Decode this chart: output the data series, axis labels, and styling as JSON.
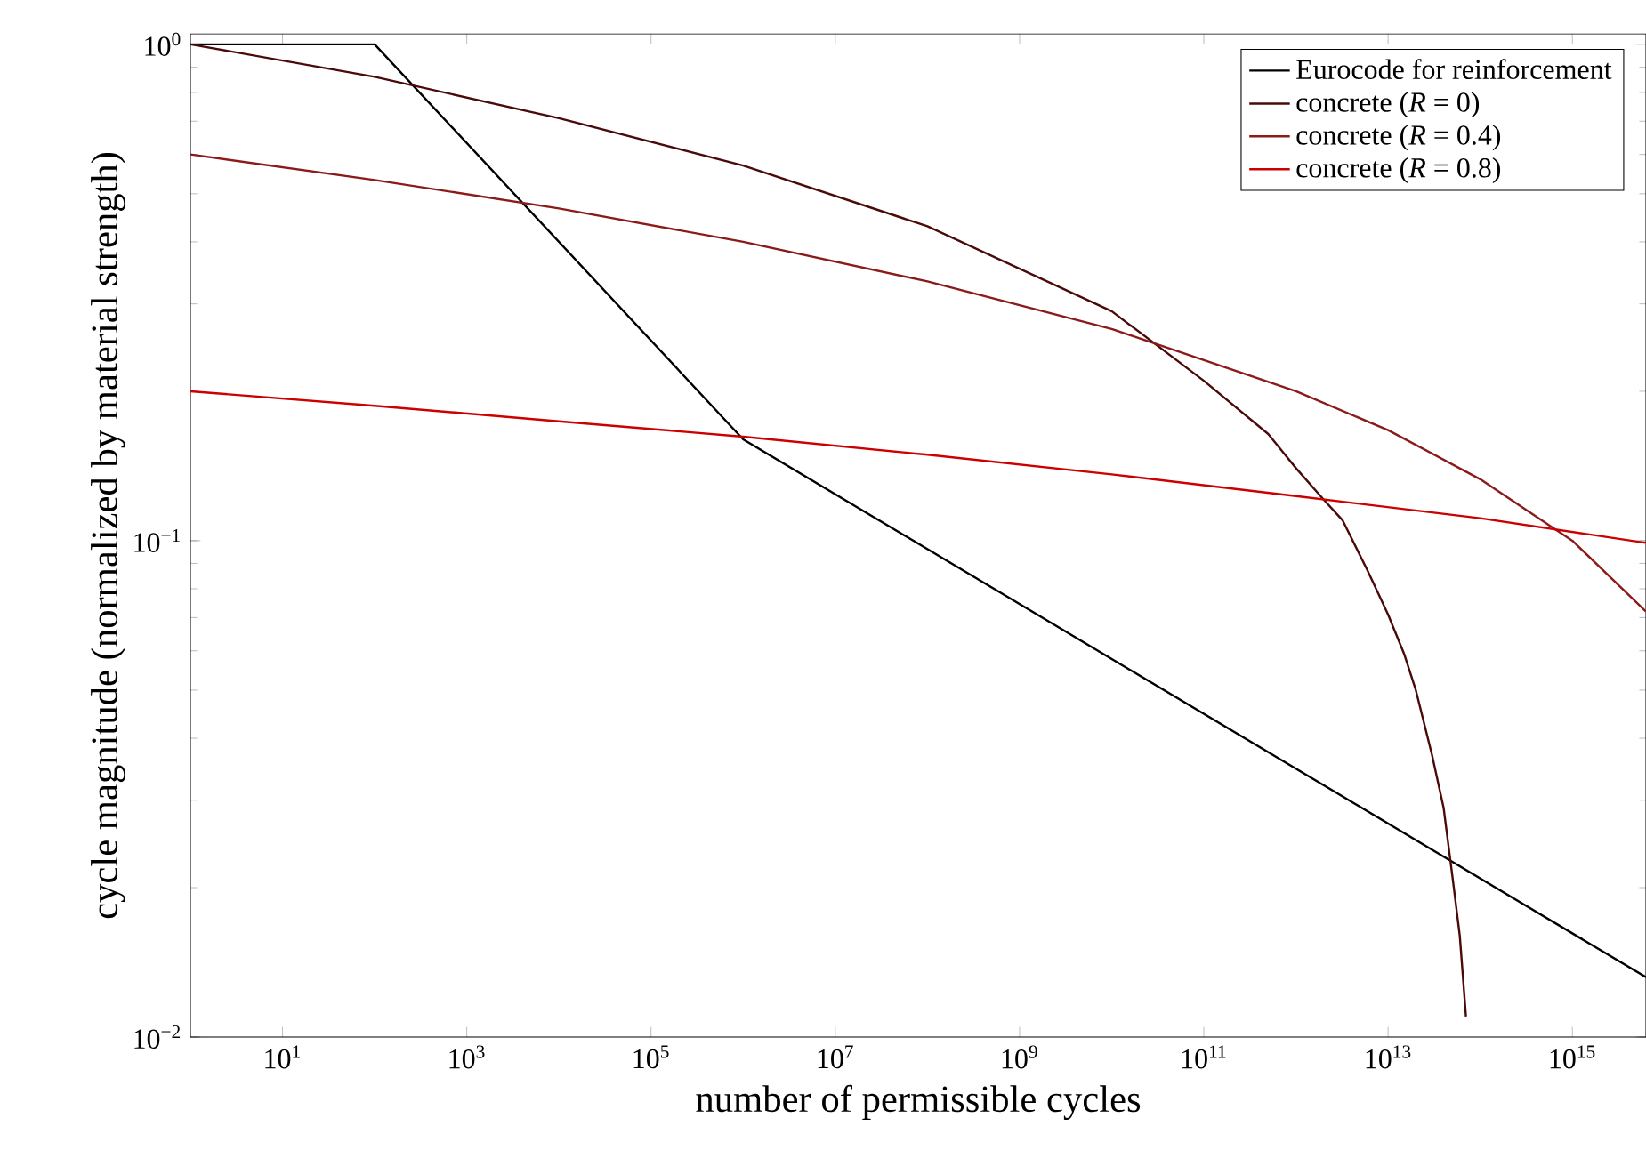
{
  "chart_data": {
    "type": "line",
    "xlabel": "number of permissible cycles",
    "ylabel": "cycle magnitude (normalized by material strength)",
    "log": "xy",
    "grid": false,
    "legend": "top right",
    "marker": "none",
    "line_style": "solid",
    "xlim": [
      1,
      6300000000000000.0
    ],
    "ylim": [
      0.01,
      1.05
    ],
    "xticks": [
      {
        "value": 10,
        "label": "10$^{1}$"
      },
      {
        "value": 1000,
        "label": "10$^{3}$"
      },
      {
        "value": 100000,
        "label": "10$^{5}$"
      },
      {
        "value": 10000000,
        "label": "10$^{7}$"
      },
      {
        "value": 1000000000,
        "label": "10$^{9}$"
      },
      {
        "value": 100000000000,
        "label": "10$^{11}$"
      },
      {
        "value": 10000000000000,
        "label": "10$^{13}$"
      },
      {
        "value": 1000000000000000,
        "label": "10$^{15}$"
      }
    ],
    "yticks": [
      {
        "value": 0.01,
        "label": "10$^{−2}$"
      },
      {
        "value": 0.1,
        "label": "10$^{−1}$"
      },
      {
        "value": 1,
        "label": "10$^{0}$"
      }
    ],
    "series": [
      {
        "name": "Eurocode for reinforcement",
        "color": "#000000",
        "x": [
          1,
          100,
          1000000,
          6300000000000000.0
        ],
        "values": [
          1,
          1,
          0.16,
          0.0132
        ]
      },
      {
        "name": "concrete (*R* = 0)",
        "color": "#4a0a0a",
        "x": [
          1,
          100,
          10000,
          1000000,
          100000000,
          10000000000,
          100000000000,
          500000000000,
          1000000000000,
          2000000000000,
          3200000000000.0,
          6000000000000.0,
          10000000000000,
          15000000000000.0,
          20000000000000.0,
          30000000000000.0,
          40000000000000.0,
          50000000000000.0,
          60000000000000.0,
          70000000000000.0
        ],
        "values": [
          1,
          0.86,
          0.71,
          0.57,
          0.43,
          0.29,
          0.21,
          0.164,
          0.14,
          0.121,
          0.11,
          0.087,
          0.071,
          0.059,
          0.05,
          0.037,
          0.029,
          0.021,
          0.016,
          0.011
        ]
      },
      {
        "name": "concrete (*R* = 0.4)",
        "color": "#8b1a1a",
        "x": [
          1,
          100,
          10000,
          1000000,
          100000000,
          10000000000,
          1000000000000,
          10000000000000,
          100000000000000,
          1000000000000000,
          6300000000000000.0
        ],
        "values": [
          0.6,
          0.533,
          0.467,
          0.4,
          0.333,
          0.267,
          0.2,
          0.167,
          0.133,
          0.1,
          0.072
        ]
      },
      {
        "name": "concrete (*R* = 0.8)",
        "color": "#cc0000",
        "x": [
          1,
          100,
          10000,
          1000000,
          100000000,
          10000000000,
          1000000000000,
          100000000000000,
          6300000000000000.0
        ],
        "values": [
          0.2,
          0.187,
          0.174,
          0.162,
          0.149,
          0.136,
          0.123,
          0.111,
          0.099
        ]
      }
    ]
  }
}
